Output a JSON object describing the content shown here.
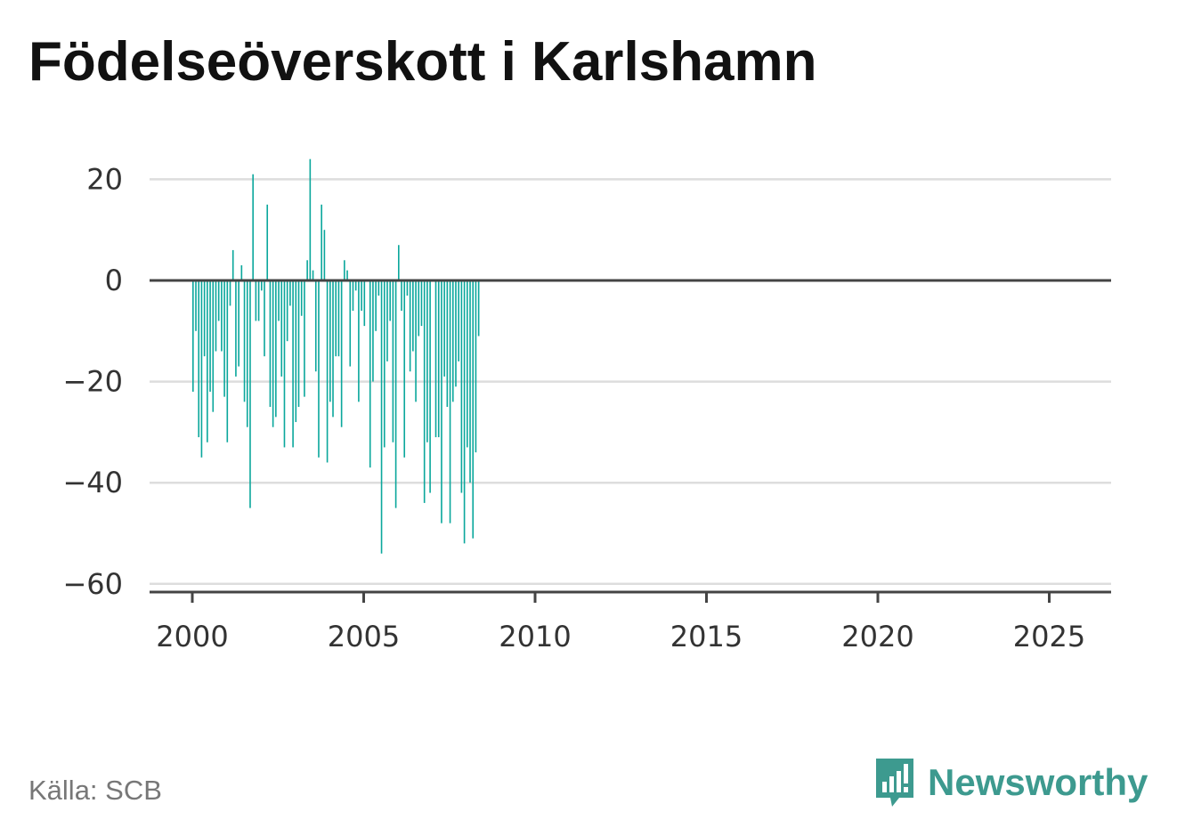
{
  "title": "Födelseöverskott i Karlshamn",
  "source": "Källa: SCB",
  "brand": {
    "name": "Newsworthy",
    "logo_icon": "bar-chart-speech-bubble-icon",
    "color": "#3d9a8f"
  },
  "chart_data": {
    "type": "bar",
    "title": "Födelseöverskott i Karlshamn",
    "xlabel": "",
    "ylabel": "",
    "bar_color": "#0ba79c",
    "grid": true,
    "ylim": [
      -62,
      28
    ],
    "yticks": [
      20,
      0,
      -20,
      -40,
      -60
    ],
    "ytick_labels": [
      "20",
      "0",
      "−20",
      "−40",
      "−60"
    ],
    "xticks": [
      2000,
      2005,
      2010,
      2015,
      2020,
      2025
    ],
    "xtick_labels": [
      "2000",
      "2005",
      "2010",
      "2015",
      "2020",
      "2025"
    ],
    "x_start": "2000-01",
    "x_interval": "month",
    "values": [
      -22,
      -10,
      -31,
      -35,
      -15,
      -32,
      -22,
      -26,
      -14,
      -8,
      -14,
      -23,
      -32,
      -5,
      6,
      -19,
      -17,
      3,
      -24,
      -29,
      -45,
      21,
      -8,
      -8,
      -2,
      -15,
      15,
      -25,
      -29,
      -27,
      -8,
      -19,
      -33,
      -12,
      -5,
      -33,
      -28,
      -25,
      -7,
      -23,
      4,
      24,
      2,
      -18,
      -35,
      15,
      10,
      -36,
      -24,
      -27,
      -15,
      -15,
      -29,
      4,
      2,
      -17,
      -6,
      -2,
      -24,
      -6,
      -9,
      0,
      -37,
      -20,
      -10,
      -3,
      -54,
      -33,
      -16,
      -8,
      -32,
      -45,
      7,
      -6,
      -35,
      -3,
      -18,
      -14,
      -24,
      -11,
      -9,
      -44,
      -32,
      -42,
      0,
      -31,
      -31,
      -48,
      -19,
      -25,
      -48,
      -24,
      -21,
      -16,
      -42,
      -52,
      -33,
      -40,
      -51,
      -34,
      -11
    ]
  }
}
